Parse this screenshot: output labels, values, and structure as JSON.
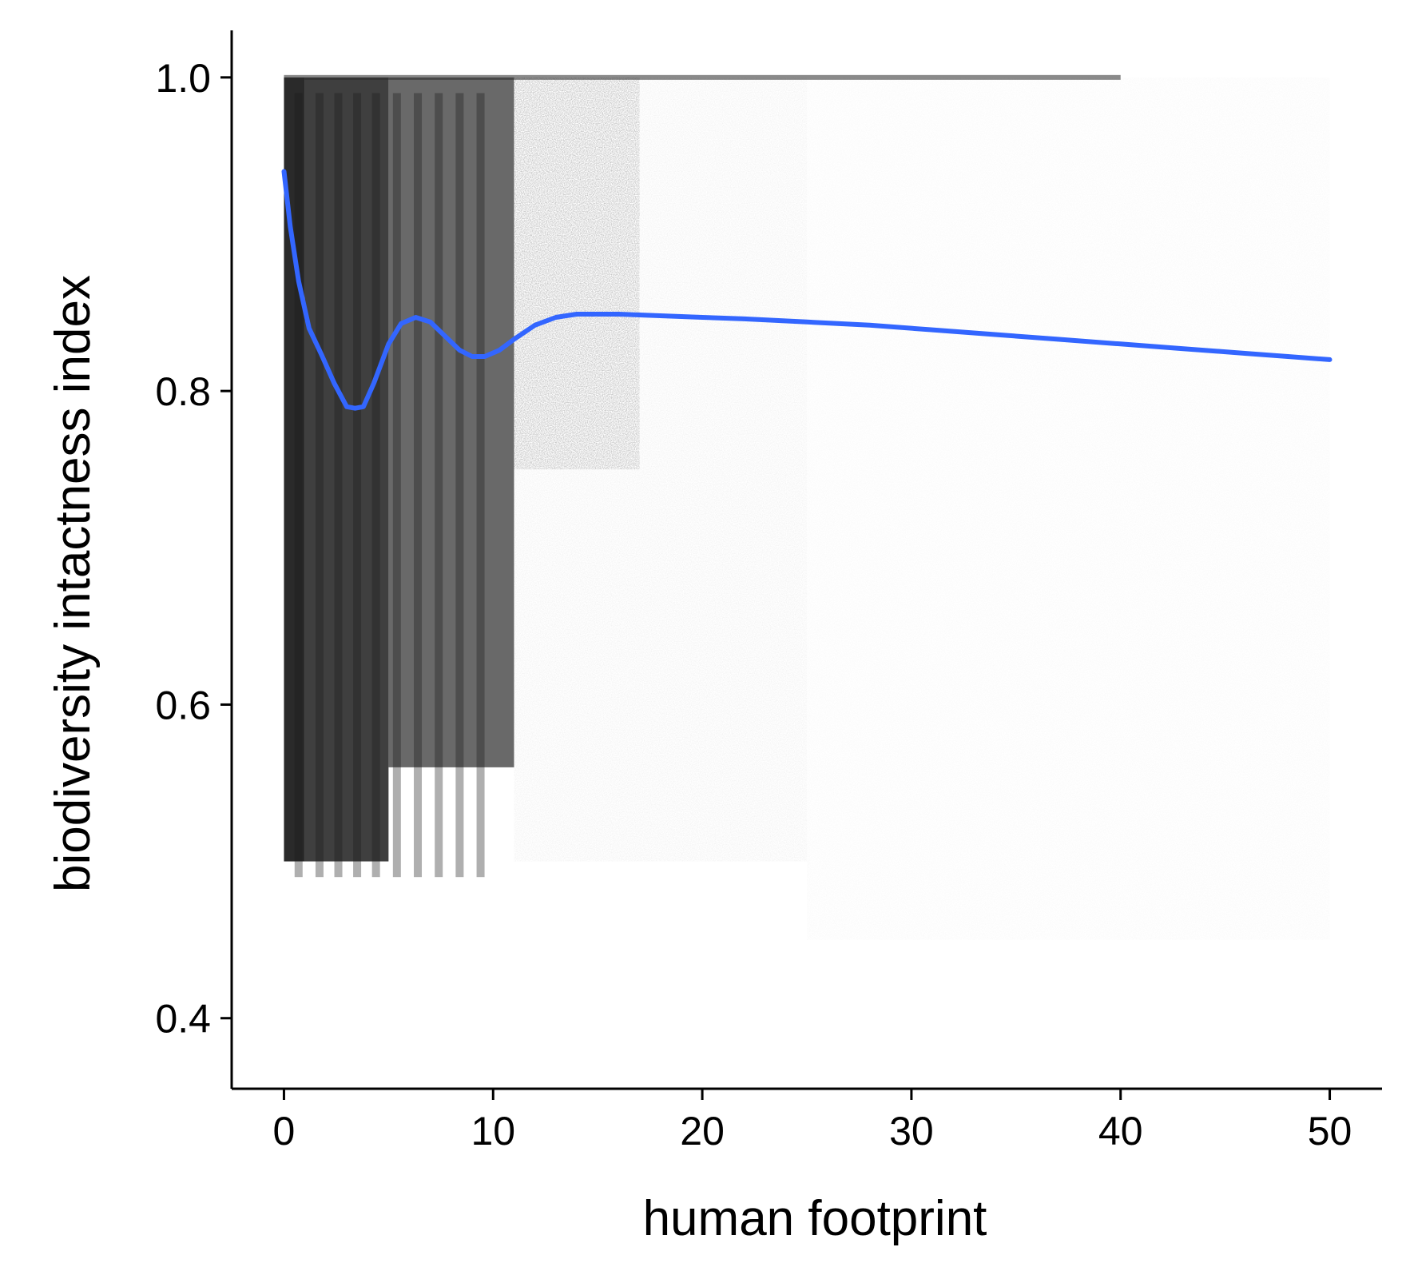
{
  "chart_data": {
    "type": "scatter",
    "title": "",
    "xlabel": "human footprint",
    "ylabel": "biodiversity intactness index",
    "xlim": [
      -2.5,
      52.5
    ],
    "ylim": [
      0.355,
      1.03
    ],
    "x_ticks": [
      0,
      10,
      20,
      30,
      40,
      50
    ],
    "x_tick_labels": [
      "0",
      "10",
      "20",
      "30",
      "40",
      "50"
    ],
    "y_ticks": [
      0.4,
      0.6,
      0.8,
      1.0
    ],
    "y_tick_labels": [
      "0.4",
      "0.6",
      "0.8",
      "1.0"
    ],
    "grid": false,
    "legend": "none",
    "colors": {
      "points": "#2a2a2a",
      "smooth_line": "#3366ff",
      "axis": "#000000"
    },
    "series": [
      {
        "kind": "scatter-density",
        "description_of_distribution": "dense near 0-16, sparse beyond",
        "bands": [
          {
            "x": [
              0,
              1
            ],
            "y": [
              0.5,
              1.0
            ],
            "density": 1.0
          },
          {
            "x": [
              1,
              5
            ],
            "y": [
              0.5,
              1.0
            ],
            "density": 0.9
          },
          {
            "x": [
              5,
              11
            ],
            "y": [
              0.56,
              1.0
            ],
            "density": 0.7
          },
          {
            "x": [
              11,
              17
            ],
            "y": [
              0.75,
              1.0
            ],
            "density": 0.55
          },
          {
            "x": [
              11,
              25
            ],
            "y": [
              0.5,
              1.0
            ],
            "density": 0.12
          },
          {
            "x": [
              25,
              50
            ],
            "y": [
              0.45,
              1.0
            ],
            "density": 0.05
          }
        ]
      },
      {
        "kind": "smooth",
        "x": [
          0,
          0.3,
          0.7,
          1.2,
          1.8,
          2.4,
          3.0,
          3.4,
          3.8,
          4.3,
          5.0,
          5.6,
          6.3,
          7.0,
          7.7,
          8.4,
          9.0,
          9.6,
          10.3,
          11.0,
          12.0,
          13.0,
          14.0,
          15.0,
          16.0,
          18.0,
          20.0,
          22.0,
          25.0,
          28.0,
          31.0,
          34.0,
          37.0,
          40.0,
          43.0,
          46.0,
          48.0,
          50.0
        ],
        "y": [
          0.94,
          0.905,
          0.87,
          0.84,
          0.823,
          0.805,
          0.79,
          0.789,
          0.79,
          0.805,
          0.83,
          0.843,
          0.847,
          0.844,
          0.835,
          0.826,
          0.822,
          0.822,
          0.826,
          0.833,
          0.842,
          0.847,
          0.849,
          0.849,
          0.849,
          0.848,
          0.847,
          0.846,
          0.844,
          0.842,
          0.839,
          0.836,
          0.833,
          0.83,
          0.827,
          0.824,
          0.822,
          0.82
        ]
      }
    ]
  }
}
